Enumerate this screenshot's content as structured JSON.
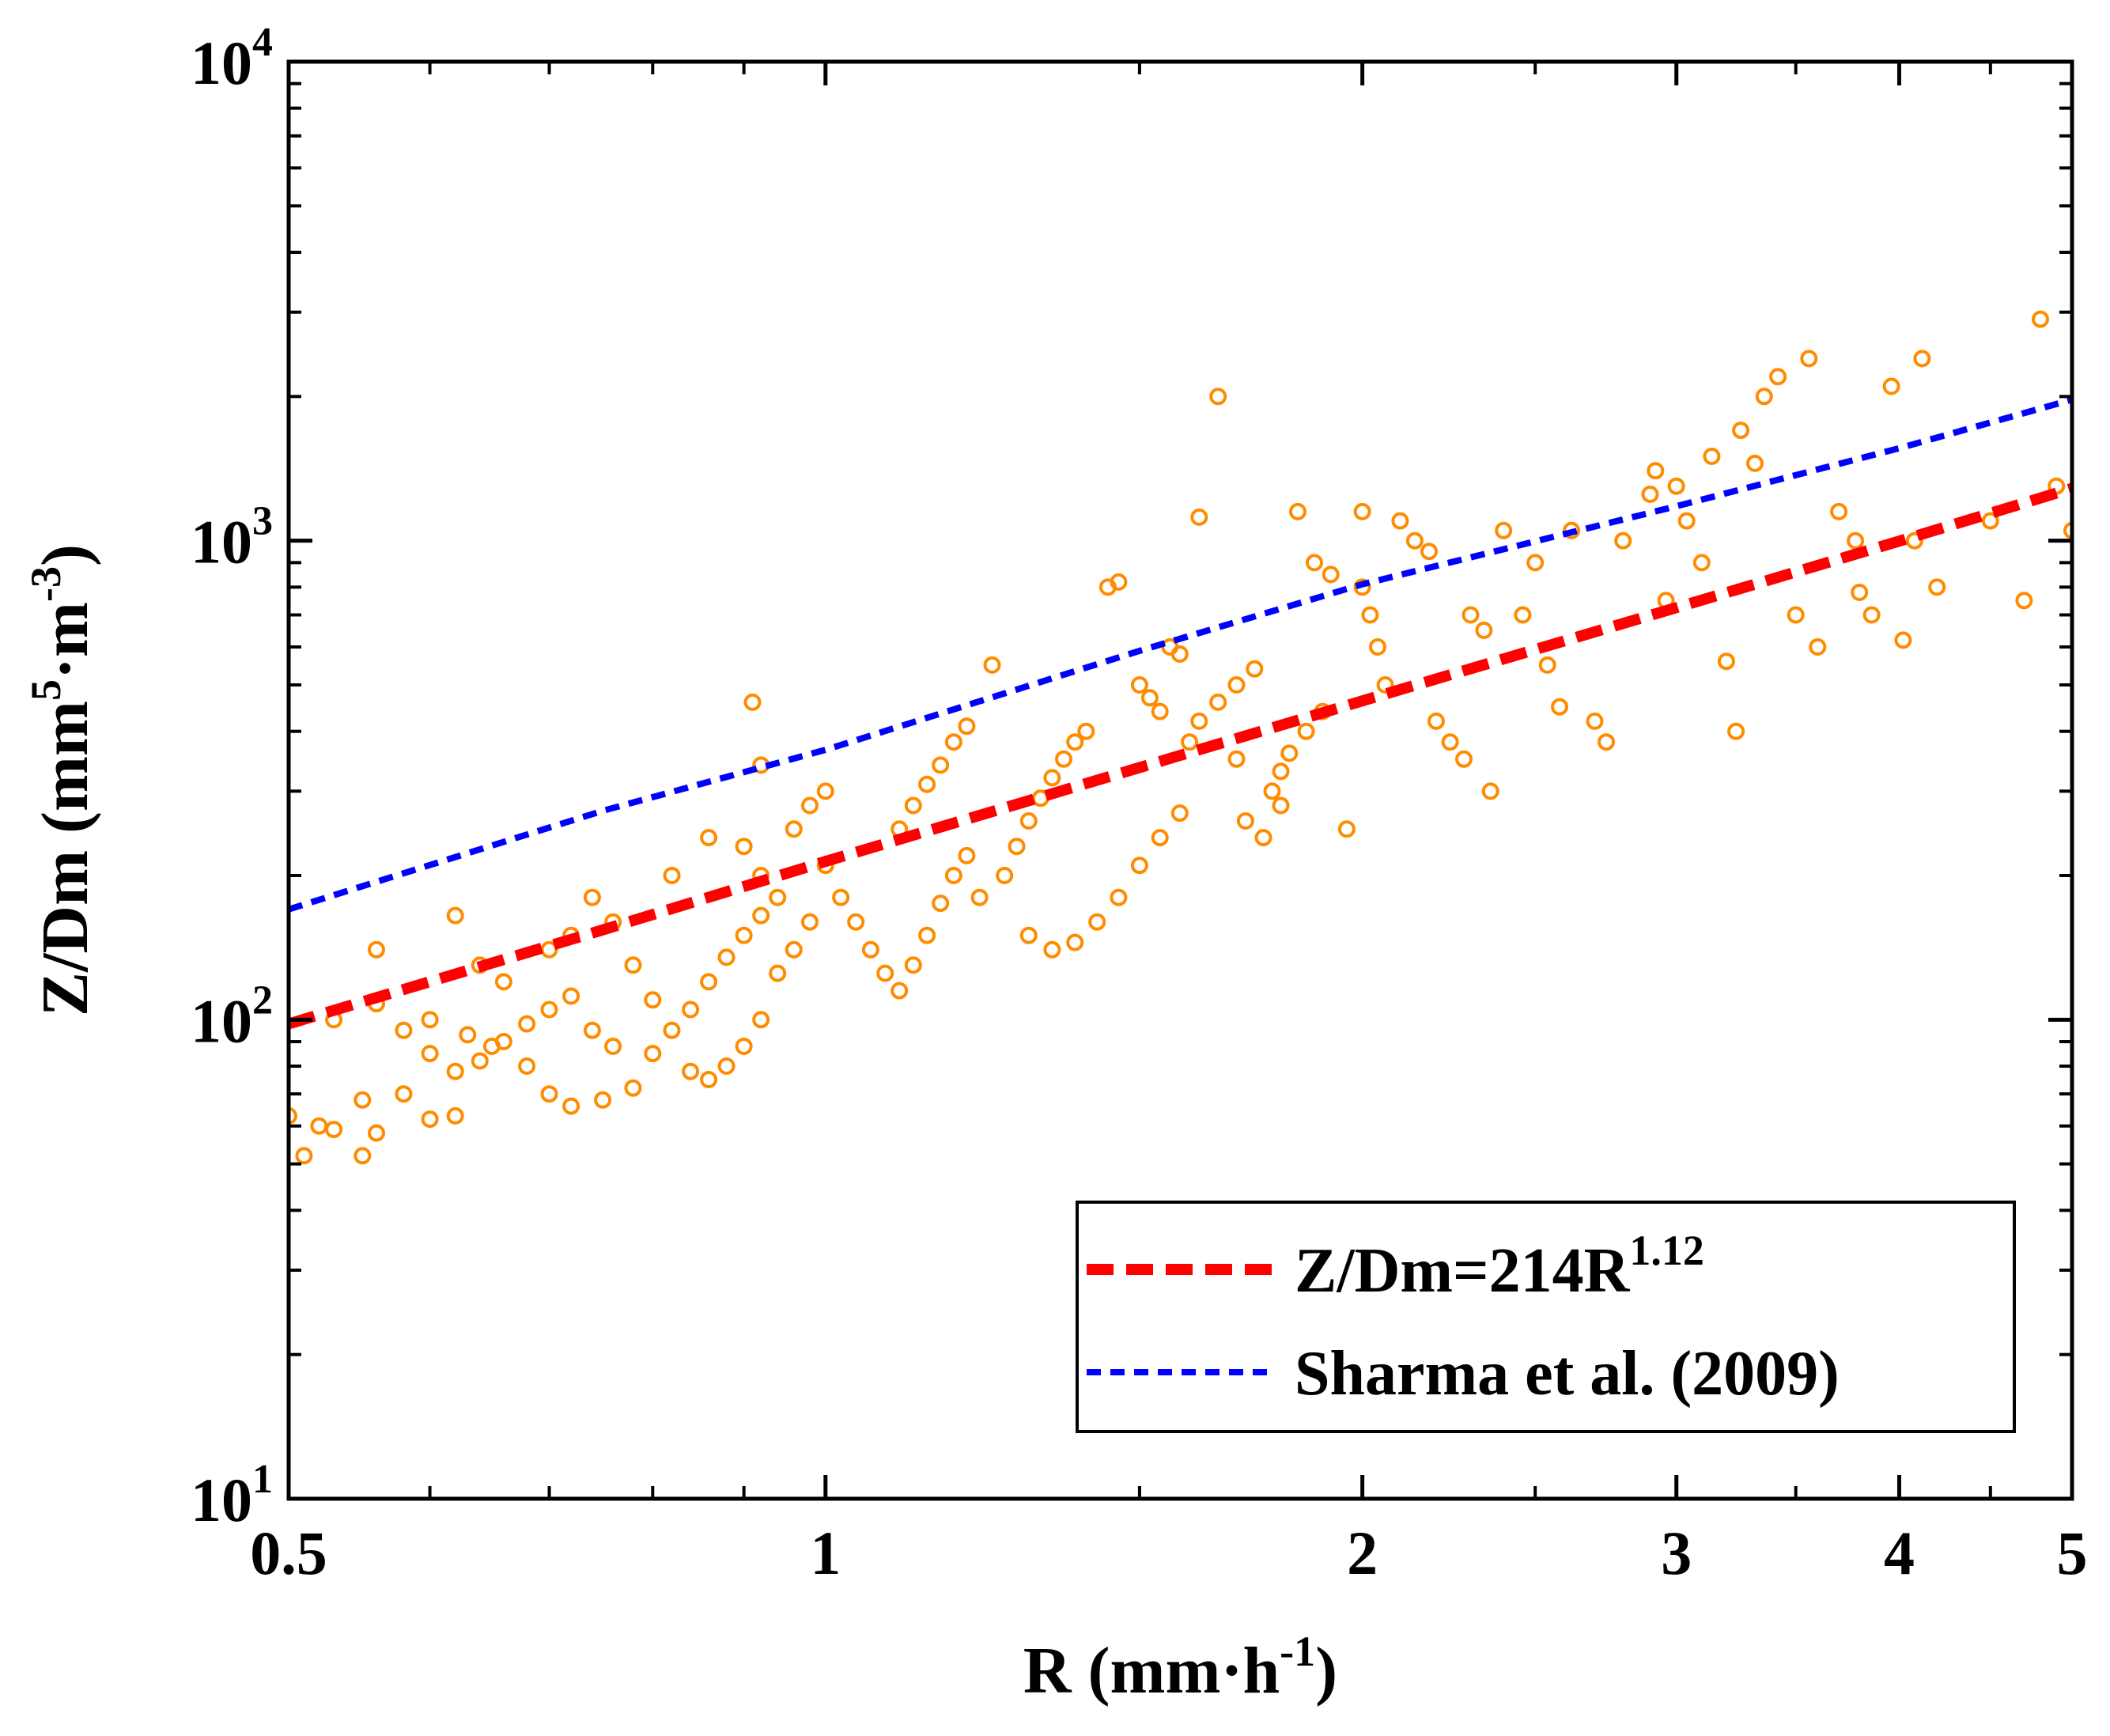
{
  "chart_data": {
    "type": "scatter",
    "x_scale": "log",
    "y_scale": "log",
    "xlim": [
      0.5,
      5
    ],
    "ylim": [
      10,
      10000
    ],
    "xlabel": {
      "main": "R (mm·h",
      "sup": "-1",
      "tail": ")"
    },
    "ylabel": {
      "main": "Z/Dm (mm",
      "sup1": "5",
      "mid": "·m",
      "sup2": "-3",
      "tail": ")"
    },
    "x_ticks": [
      {
        "value": 0.5,
        "label": "0.5"
      },
      {
        "value": 1,
        "label": "1"
      },
      {
        "value": 2,
        "label": "2"
      },
      {
        "value": 3,
        "label": "3"
      },
      {
        "value": 4,
        "label": "4"
      },
      {
        "value": 5,
        "label": "5"
      }
    ],
    "y_ticks": [
      {
        "value": 10,
        "base": "10",
        "exp": "1"
      },
      {
        "value": 100,
        "base": "10",
        "exp": "2"
      },
      {
        "value": 1000,
        "base": "10",
        "exp": "3"
      },
      {
        "value": 10000,
        "base": "10",
        "exp": "4"
      }
    ],
    "grid": false,
    "legend_position": "bottom-right",
    "series": [
      {
        "name": "",
        "kind": "scatter",
        "color": "#ff8c00",
        "points": [
          [
            0.5,
            63
          ],
          [
            0.51,
            52
          ],
          [
            0.52,
            60
          ],
          [
            0.53,
            59
          ],
          [
            0.55,
            52
          ],
          [
            0.55,
            68
          ],
          [
            0.56,
            58
          ],
          [
            0.58,
            70
          ],
          [
            0.6,
            62
          ],
          [
            0.62,
            63
          ],
          [
            0.53,
            100
          ],
          [
            0.56,
            108
          ],
          [
            0.6,
            100
          ],
          [
            0.63,
            93
          ],
          [
            0.65,
            88
          ],
          [
            0.68,
            80
          ],
          [
            0.7,
            70
          ],
          [
            0.72,
            66
          ],
          [
            0.75,
            68
          ],
          [
            0.78,
            72
          ],
          [
            0.58,
            95
          ],
          [
            0.6,
            85
          ],
          [
            0.62,
            78
          ],
          [
            0.64,
            82
          ],
          [
            0.66,
            90
          ],
          [
            0.68,
            98
          ],
          [
            0.7,
            105
          ],
          [
            0.72,
            112
          ],
          [
            0.74,
            95
          ],
          [
            0.76,
            88
          ],
          [
            0.56,
            140
          ],
          [
            0.62,
            165
          ],
          [
            0.64,
            130
          ],
          [
            0.66,
            120
          ],
          [
            0.7,
            140
          ],
          [
            0.72,
            150
          ],
          [
            0.74,
            180
          ],
          [
            0.76,
            160
          ],
          [
            0.78,
            130
          ],
          [
            0.8,
            110
          ],
          [
            0.8,
            85
          ],
          [
            0.82,
            95
          ],
          [
            0.84,
            105
          ],
          [
            0.86,
            120
          ],
          [
            0.88,
            135
          ],
          [
            0.9,
            150
          ],
          [
            0.92,
            165
          ],
          [
            0.94,
            180
          ],
          [
            0.84,
            78
          ],
          [
            0.86,
            75
          ],
          [
            0.88,
            80
          ],
          [
            0.9,
            88
          ],
          [
            0.92,
            100
          ],
          [
            0.94,
            125
          ],
          [
            0.96,
            140
          ],
          [
            0.98,
            160
          ],
          [
            0.82,
            200
          ],
          [
            0.86,
            240
          ],
          [
            0.9,
            230
          ],
          [
            0.92,
            200
          ],
          [
            0.91,
            460
          ],
          [
            0.92,
            340
          ],
          [
            0.96,
            250
          ],
          [
            0.98,
            280
          ],
          [
            1.0,
            300
          ],
          [
            1.0,
            210
          ],
          [
            1.02,
            180
          ],
          [
            1.04,
            160
          ],
          [
            1.06,
            140
          ],
          [
            1.08,
            125
          ],
          [
            1.1,
            115
          ],
          [
            1.12,
            130
          ],
          [
            1.14,
            150
          ],
          [
            1.16,
            175
          ],
          [
            1.18,
            200
          ],
          [
            1.2,
            220
          ],
          [
            1.1,
            250
          ],
          [
            1.12,
            280
          ],
          [
            1.14,
            310
          ],
          [
            1.16,
            340
          ],
          [
            1.18,
            380
          ],
          [
            1.2,
            410
          ],
          [
            1.24,
            550
          ],
          [
            1.22,
            180
          ],
          [
            1.26,
            200
          ],
          [
            1.28,
            230
          ],
          [
            1.3,
            260
          ],
          [
            1.32,
            290
          ],
          [
            1.34,
            320
          ],
          [
            1.36,
            350
          ],
          [
            1.38,
            380
          ],
          [
            1.4,
            400
          ],
          [
            1.3,
            150
          ],
          [
            1.34,
            140
          ],
          [
            1.38,
            145
          ],
          [
            1.42,
            160
          ],
          [
            1.46,
            180
          ],
          [
            1.5,
            210
          ],
          [
            1.54,
            240
          ],
          [
            1.58,
            270
          ],
          [
            1.44,
            800
          ],
          [
            1.46,
            820
          ],
          [
            1.5,
            500
          ],
          [
            1.52,
            470
          ],
          [
            1.54,
            440
          ],
          [
            1.56,
            600
          ],
          [
            1.58,
            580
          ],
          [
            1.62,
            1120
          ],
          [
            1.66,
            2000
          ],
          [
            1.7,
            350
          ],
          [
            1.6,
            380
          ],
          [
            1.62,
            420
          ],
          [
            1.66,
            460
          ],
          [
            1.7,
            500
          ],
          [
            1.74,
            540
          ],
          [
            1.78,
            300
          ],
          [
            1.8,
            330
          ],
          [
            1.82,
            360
          ],
          [
            1.86,
            400
          ],
          [
            1.9,
            440
          ],
          [
            1.72,
            260
          ],
          [
            1.76,
            240
          ],
          [
            1.8,
            280
          ],
          [
            1.84,
            1150
          ],
          [
            1.88,
            900
          ],
          [
            1.92,
            850
          ],
          [
            1.96,
            250
          ],
          [
            2.0,
            1150
          ],
          [
            2.0,
            800
          ],
          [
            2.02,
            700
          ],
          [
            2.04,
            600
          ],
          [
            2.06,
            500
          ],
          [
            2.1,
            1100
          ],
          [
            2.14,
            1000
          ],
          [
            2.18,
            950
          ],
          [
            2.2,
            420
          ],
          [
            2.24,
            380
          ],
          [
            2.28,
            350
          ],
          [
            2.3,
            700
          ],
          [
            2.34,
            650
          ],
          [
            2.36,
            300
          ],
          [
            2.4,
            1050
          ],
          [
            2.46,
            700
          ],
          [
            2.5,
            900
          ],
          [
            2.54,
            550
          ],
          [
            2.58,
            450
          ],
          [
            2.62,
            1050
          ],
          [
            2.7,
            420
          ],
          [
            2.74,
            380
          ],
          [
            2.8,
            1000
          ],
          [
            2.9,
            1250
          ],
          [
            2.92,
            1400
          ],
          [
            3.0,
            1300
          ],
          [
            3.04,
            1100
          ],
          [
            3.1,
            900
          ],
          [
            3.14,
            1500
          ],
          [
            3.2,
            560
          ],
          [
            3.24,
            400
          ],
          [
            3.26,
            1700
          ],
          [
            3.32,
            1450
          ],
          [
            3.36,
            2000
          ],
          [
            3.42,
            2200
          ],
          [
            3.56,
            2400
          ],
          [
            3.6,
            600
          ],
          [
            3.7,
            1150
          ],
          [
            3.78,
            1000
          ],
          [
            3.86,
            700
          ],
          [
            3.96,
            2100
          ],
          [
            4.02,
            620
          ],
          [
            4.08,
            1000
          ],
          [
            4.12,
            2400
          ],
          [
            4.2,
            800
          ],
          [
            4.5,
            1100
          ],
          [
            4.7,
            750
          ],
          [
            4.8,
            2900
          ],
          [
            4.9,
            1300
          ],
          [
            5.0,
            1050
          ],
          [
            3.5,
            700
          ],
          [
            3.8,
            780
          ],
          [
            2.96,
            750
          ]
        ]
      },
      {
        "name": "",
        "kind": "line",
        "color": "#ff0000",
        "style": "dashed",
        "x": [
          0.5,
          0.75,
          1,
          1.5,
          2,
          3,
          4,
          5
        ],
        "y": [
          98,
          154,
          214,
          336,
          463,
          725,
          998,
          1286
        ]
      },
      {
        "name": "",
        "kind": "line",
        "color": "#0000ff",
        "style": "dotted",
        "x": [
          0.5,
          0.75,
          1,
          1.5,
          2,
          3,
          4,
          5
        ],
        "y": [
          170,
          273,
          366,
          589,
          811,
          1180,
          1560,
          1970
        ]
      }
    ],
    "legend": [
      {
        "color": "#ff0000",
        "style": "dashed",
        "text_main": "Z/Dm=214R",
        "text_sup": "1.12"
      },
      {
        "color": "#0000ff",
        "style": "dotted",
        "text_main": "Sharma et al. (2009)",
        "text_sup": ""
      }
    ]
  }
}
